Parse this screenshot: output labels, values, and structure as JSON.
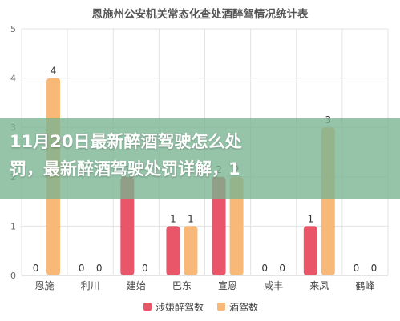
{
  "chart_data": {
    "type": "bar",
    "title": "恩施州公安机关常态化查处酒醉驾情况统计表",
    "categories": [
      "恩施",
      "利川",
      "建始",
      "巴东",
      "宣恩",
      "咸丰",
      "来凤",
      "鹤峰"
    ],
    "series": [
      {
        "name": "涉嫌醉驾数",
        "color": "#e9566a",
        "values": [
          0,
          0,
          2,
          1,
          2,
          0,
          1,
          0
        ]
      },
      {
        "name": "酒驾数",
        "color": "#f8b878",
        "values": [
          4,
          0,
          0,
          1,
          2,
          0,
          3,
          0
        ]
      }
    ],
    "ylim": [
      0,
      5
    ],
    "yticks": [
      "0",
      "1",
      "2",
      "3",
      "4",
      "5"
    ],
    "grid": true,
    "legend_position": "bottom",
    "xlabel": "",
    "ylabel": ""
  },
  "overlay": {
    "line1": "11月20日最新醉酒驾驶怎么处",
    "line2": "罚，最新醉酒驾驶处罚详解，1"
  }
}
